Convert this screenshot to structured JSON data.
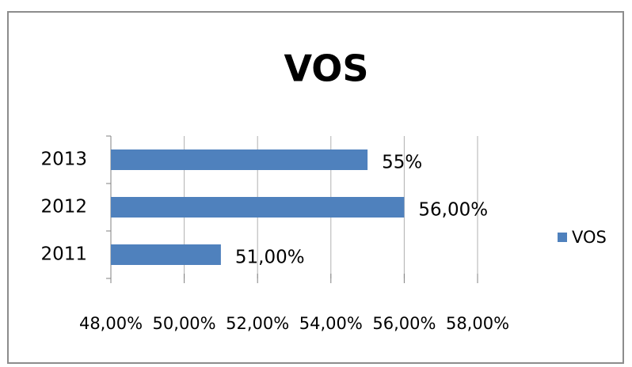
{
  "chart_data": {
    "type": "bar",
    "orientation": "horizontal",
    "title": "VOS",
    "categories": [
      "2011",
      "2012",
      "2013"
    ],
    "series": [
      {
        "name": "VOS",
        "color": "#4f81bd",
        "values": [
          51,
          56,
          55
        ],
        "value_labels": [
          "51,00%",
          "56,00%",
          "55%"
        ]
      }
    ],
    "xlim": [
      48,
      58
    ],
    "xticks": [
      {
        "value": 48,
        "label": "48,00%"
      },
      {
        "value": 50,
        "label": "50,00%"
      },
      {
        "value": 52,
        "label": "52,00%"
      },
      {
        "value": 54,
        "label": "54,00%"
      },
      {
        "value": 56,
        "label": "56,00%"
      },
      {
        "value": 58,
        "label": "58,00%"
      }
    ],
    "grid": true,
    "legend": "right"
  }
}
